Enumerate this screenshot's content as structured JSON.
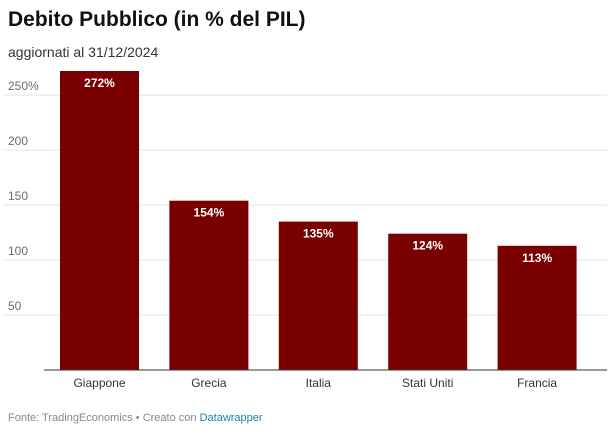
{
  "header": {
    "title": "Debito Pubblico (in % del PIL)",
    "subtitle": "aggiornati al 31/12/2024"
  },
  "footer": {
    "source": "Fonte: TradingEconomics",
    "separator": " • ",
    "created_with": "Creato con ",
    "tool": "Datawrapper"
  },
  "colors": {
    "bar": "#7a0000",
    "grid": "#e4e4e4",
    "axis": "#333333"
  },
  "chart_data": {
    "type": "bar",
    "title": "Debito Pubblico (in % del PIL)",
    "subtitle": "aggiornati al 31/12/2024",
    "categories": [
      "Giappone",
      "Grecia",
      "Italia",
      "Stati Uniti",
      "Francia"
    ],
    "values": [
      272,
      154,
      135,
      124,
      113
    ],
    "value_labels": [
      "272%",
      "154%",
      "135%",
      "124%",
      "113%"
    ],
    "yticks": [
      50,
      100,
      150,
      200,
      250
    ],
    "ytick_labels": [
      "50",
      "100",
      "150",
      "200",
      "250%"
    ],
    "ylim": [
      0,
      272
    ],
    "grid": true,
    "xlabel": "",
    "ylabel": ""
  }
}
